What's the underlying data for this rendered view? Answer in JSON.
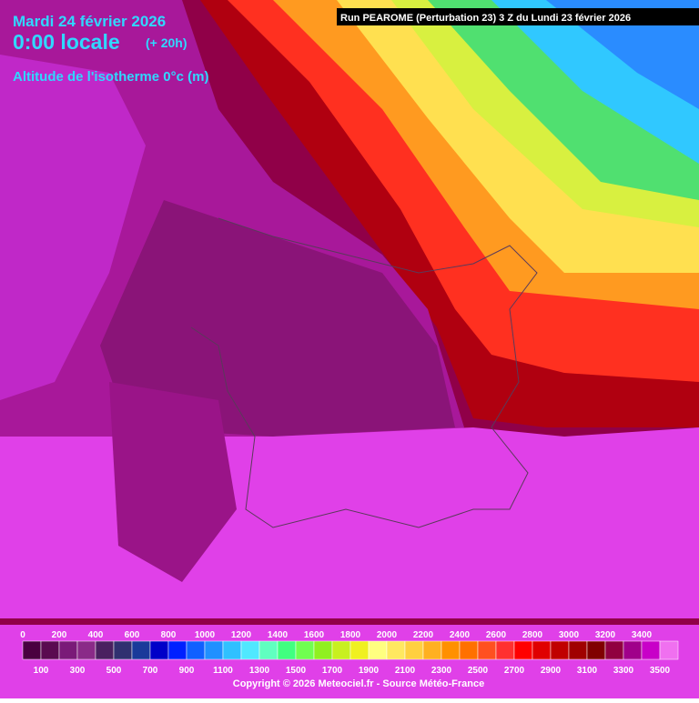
{
  "header": {
    "date": "Mardi 24 février 2026",
    "time": "0:00 locale",
    "lead": "(+ 20h)",
    "parameter": "Altitude de l'isotherme 0°c (m)",
    "run": "Run PEAROME (Perturbation 23) 3 Z du Lundi 23 février 2026"
  },
  "legend": {
    "top_labels": [
      "0",
      "200",
      "400",
      "600",
      "800",
      "1000",
      "1200",
      "1400",
      "1600",
      "1800",
      "2000",
      "2200",
      "2400",
      "2600",
      "2800",
      "3000",
      "3200",
      "3400"
    ],
    "bottom_labels": [
      "100",
      "300",
      "500",
      "700",
      "900",
      "1100",
      "1300",
      "1500",
      "1700",
      "1900",
      "2100",
      "2300",
      "2500",
      "2700",
      "2900",
      "3100",
      "3300",
      "3500"
    ],
    "colors": [
      "#4a0040",
      "#5a0a50",
      "#7a1a78",
      "#8a2a88",
      "#4a2060",
      "#303070",
      "#1a3a9a",
      "#0000c8",
      "#0020ff",
      "#1060ff",
      "#2090ff",
      "#30c0ff",
      "#50e8ff",
      "#60ffc0",
      "#40ff80",
      "#70ff50",
      "#90f020",
      "#c8f020",
      "#f0f020",
      "#ffff80",
      "#ffe860",
      "#ffd040",
      "#ffb020",
      "#ff9000",
      "#ff7000",
      "#ff5020",
      "#ff3030",
      "#ff0000",
      "#e00000",
      "#c00000",
      "#a00000",
      "#800000",
      "#900040",
      "#a0008a",
      "#c800c8",
      "#f070f0"
    ]
  },
  "footer": "Copyright © 2026 Meteociel.fr - Source Météo-France"
}
